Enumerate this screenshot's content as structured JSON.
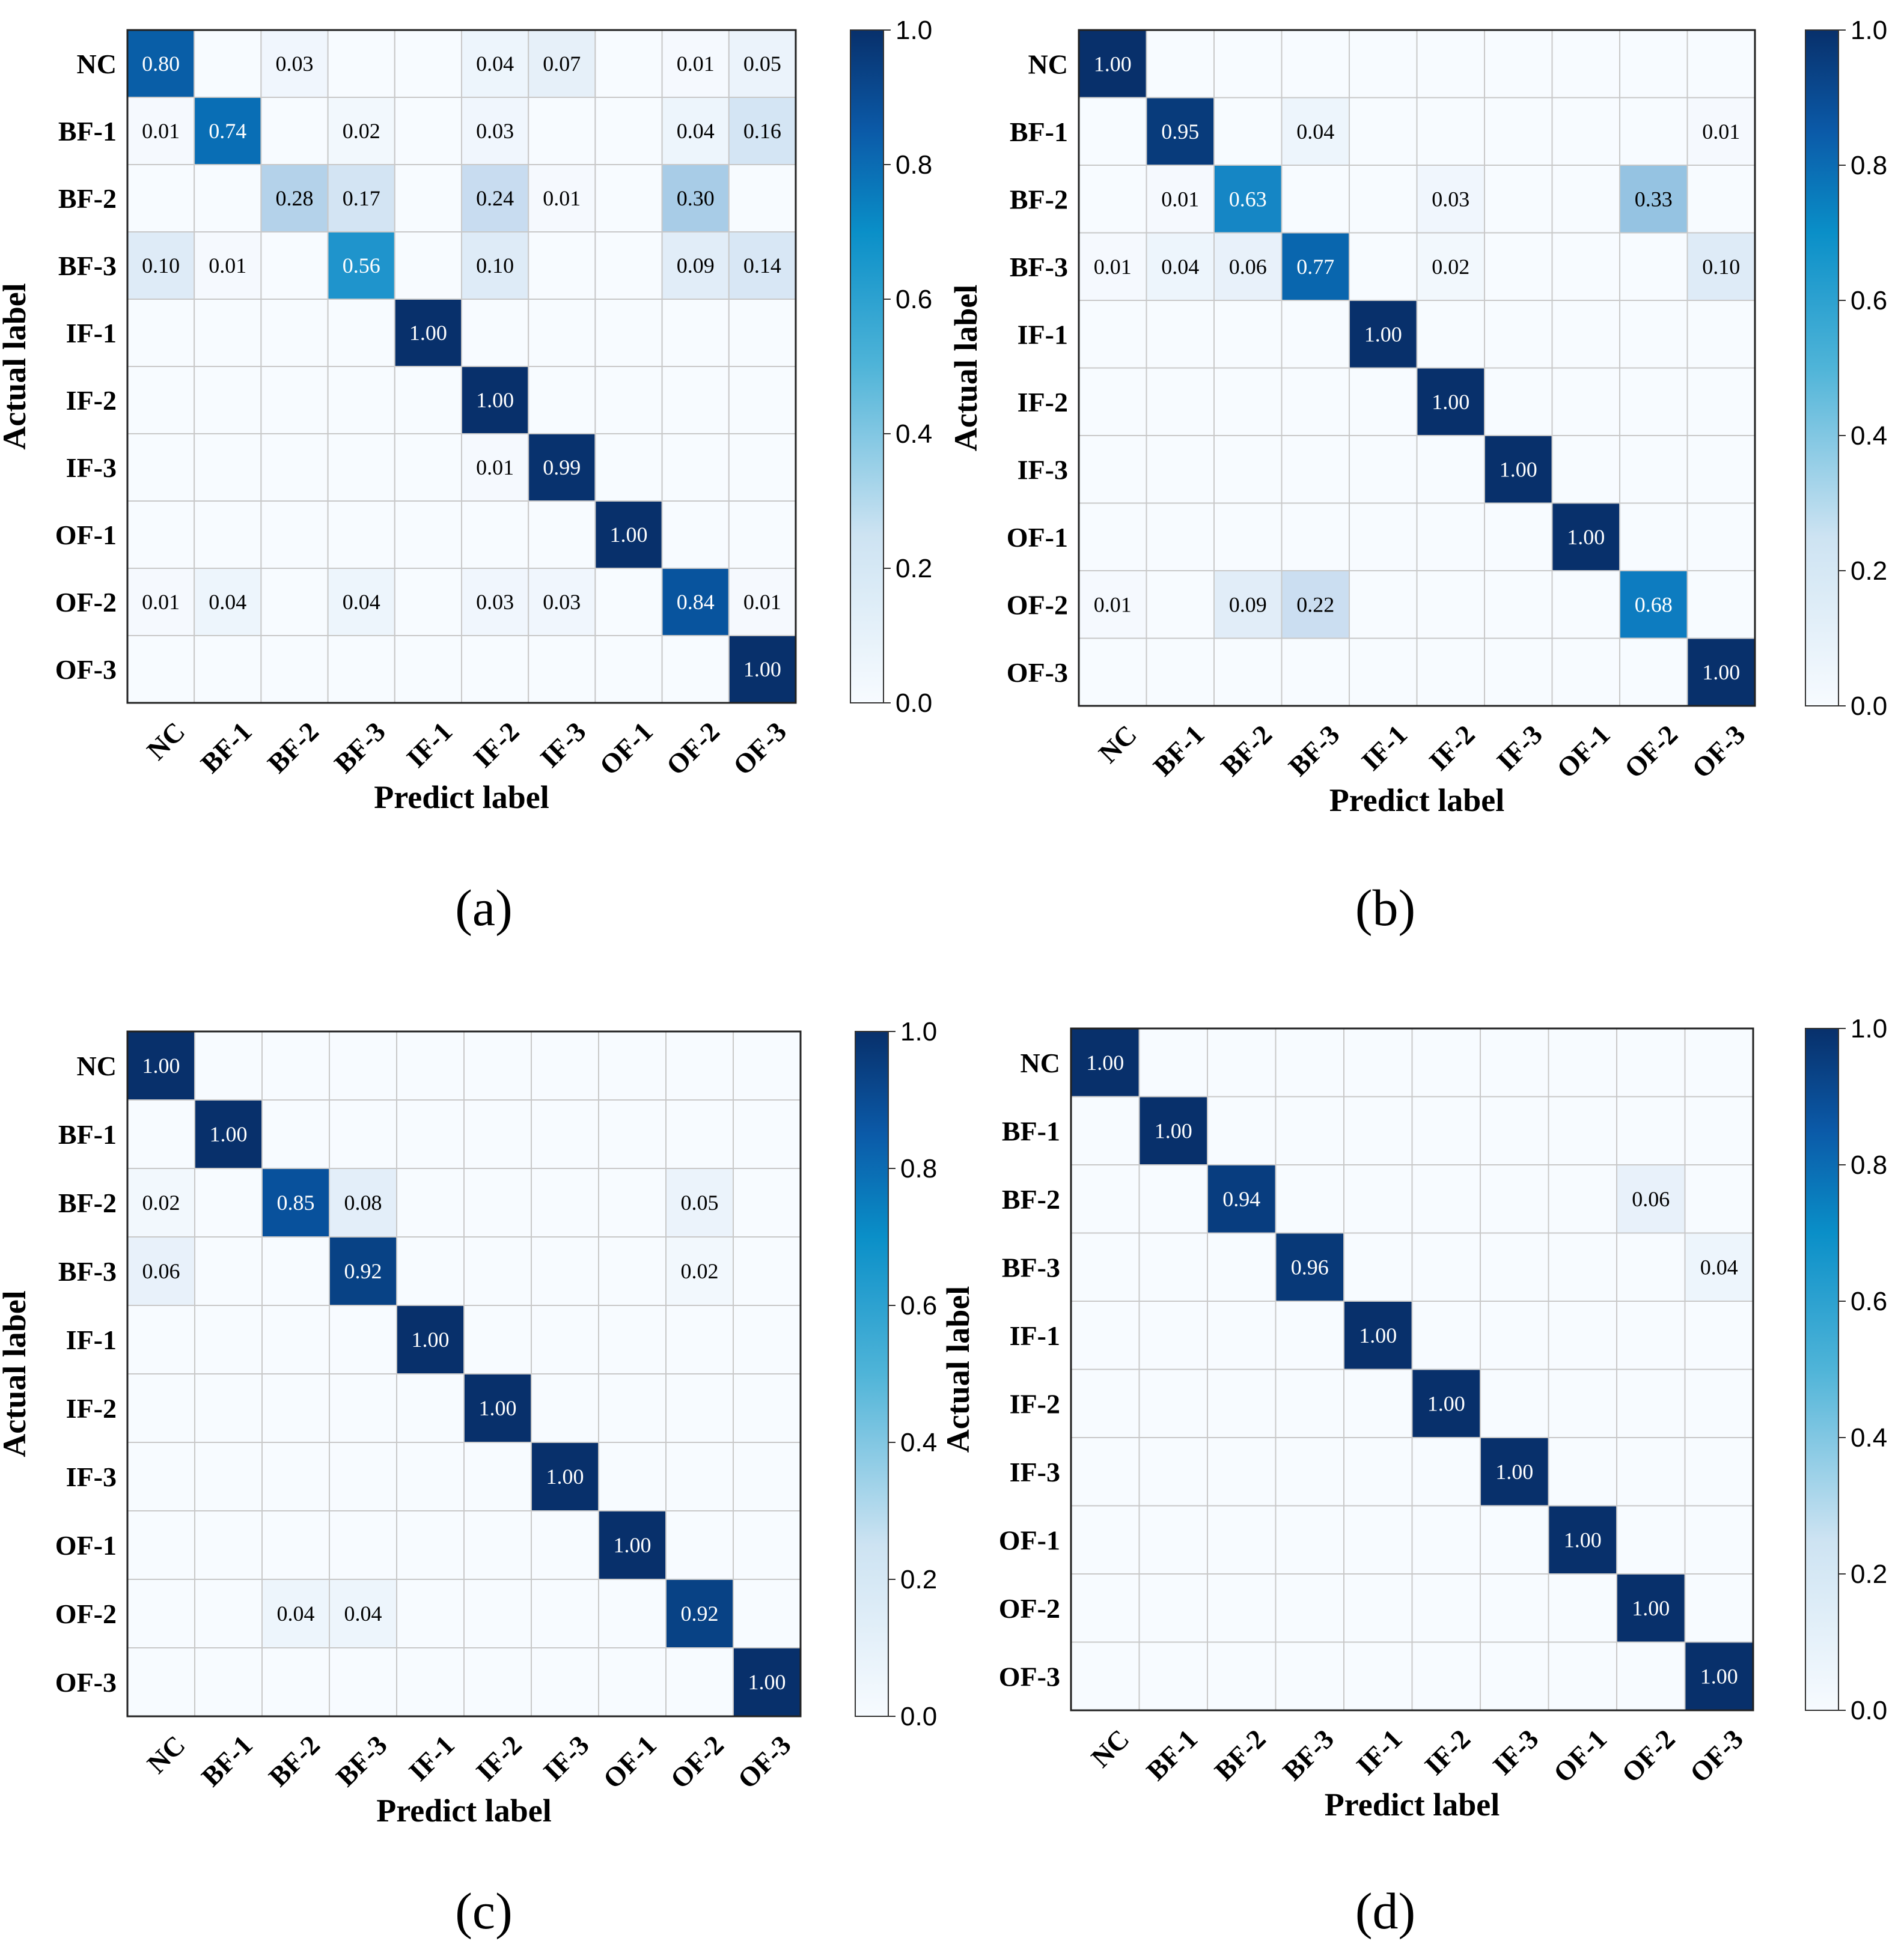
{
  "chart_data": [
    {
      "panel": "(a)",
      "type": "heatmap",
      "xlabel": "Predict label",
      "ylabel": "Actual label",
      "row_labels": [
        "NC",
        "BF-1",
        "BF-2",
        "BF-3",
        "IF-1",
        "IF-2",
        "IF-3",
        "OF-1",
        "OF-2",
        "OF-3"
      ],
      "col_labels": [
        "NC",
        "BF-1",
        "BF-2",
        "BF-3",
        "IF-1",
        "IF-2",
        "IF-3",
        "OF-1",
        "OF-2",
        "OF-3"
      ],
      "colorbar": {
        "range": [
          0,
          1
        ],
        "ticks": [
          "0.0",
          "0.2",
          "0.4",
          "0.6",
          "0.8",
          "1.0"
        ]
      },
      "cell_labels": [
        [
          "0.80",
          "",
          "0.03",
          "",
          "",
          "0.04",
          "0.07",
          "",
          "0.01",
          "0.05"
        ],
        [
          "0.01",
          "0.74",
          "",
          "0.02",
          "",
          "0.03",
          "",
          "",
          "0.04",
          "0.16"
        ],
        [
          "",
          "",
          "0.28",
          "0.17",
          "",
          "0.24",
          "0.01",
          "",
          "0.30",
          ""
        ],
        [
          "0.10",
          "0.01",
          "",
          "0.56",
          "",
          "0.10",
          "",
          "",
          "0.09",
          "0.14"
        ],
        [
          "",
          "",
          "",
          "",
          "1.00",
          "",
          "",
          "",
          "",
          ""
        ],
        [
          "",
          "",
          "",
          "",
          "",
          "1.00",
          "",
          "",
          "",
          ""
        ],
        [
          "",
          "",
          "",
          "",
          "",
          "0.01",
          "0.99",
          "",
          "",
          ""
        ],
        [
          "",
          "",
          "",
          "",
          "",
          "",
          "",
          "1.00",
          "",
          ""
        ],
        [
          "0.01",
          "0.04",
          "",
          "0.04",
          "",
          "0.03",
          "0.03",
          "",
          "0.84",
          "0.01"
        ],
        [
          "",
          "",
          "",
          "",
          "",
          "",
          "",
          "",
          "",
          "1.00"
        ]
      ]
    },
    {
      "panel": "(b)",
      "type": "heatmap",
      "xlabel": "Predict label",
      "ylabel": "Actual label",
      "row_labels": [
        "NC",
        "BF-1",
        "BF-2",
        "BF-3",
        "IF-1",
        "IF-2",
        "IF-3",
        "OF-1",
        "OF-2",
        "OF-3"
      ],
      "col_labels": [
        "NC",
        "BF-1",
        "BF-2",
        "BF-3",
        "IF-1",
        "IF-2",
        "IF-3",
        "OF-1",
        "OF-2",
        "OF-3"
      ],
      "colorbar": {
        "range": [
          0,
          1
        ],
        "ticks": [
          "0.0",
          "0.2",
          "0.4",
          "0.6",
          "0.8",
          "1.0"
        ]
      },
      "cell_labels": [
        [
          "1.00",
          "",
          "",
          "",
          "",
          "",
          "",
          "",
          "",
          ""
        ],
        [
          "",
          "0.95",
          "",
          "0.04",
          "",
          "",
          "",
          "",
          "",
          "0.01"
        ],
        [
          "",
          "0.01",
          "0.63",
          "",
          "",
          "0.03",
          "",
          "",
          "0.33",
          ""
        ],
        [
          "0.01",
          "0.04",
          "0.06",
          "0.77",
          "",
          "0.02",
          "",
          "",
          "",
          "0.10"
        ],
        [
          "",
          "",
          "",
          "",
          "1.00",
          "",
          "",
          "",
          "",
          ""
        ],
        [
          "",
          "",
          "",
          "",
          "",
          "1.00",
          "",
          "",
          "",
          ""
        ],
        [
          "",
          "",
          "",
          "",
          "",
          "",
          "1.00",
          "",
          "",
          ""
        ],
        [
          "",
          "",
          "",
          "",
          "",
          "",
          "",
          "1.00",
          "",
          ""
        ],
        [
          "0.01",
          "",
          "0.09",
          "0.22",
          "",
          "",
          "",
          "",
          "0.68",
          ""
        ],
        [
          "",
          "",
          "",
          "",
          "",
          "",
          "",
          "",
          "",
          "1.00"
        ]
      ]
    },
    {
      "panel": "(c)",
      "type": "heatmap",
      "xlabel": "Predict label",
      "ylabel": "Actual label",
      "row_labels": [
        "NC",
        "BF-1",
        "BF-2",
        "BF-3",
        "IF-1",
        "IF-2",
        "IF-3",
        "OF-1",
        "OF-2",
        "OF-3"
      ],
      "col_labels": [
        "NC",
        "BF-1",
        "BF-2",
        "BF-3",
        "IF-1",
        "IF-2",
        "IF-3",
        "OF-1",
        "OF-2",
        "OF-3"
      ],
      "colorbar": {
        "range": [
          0,
          1
        ],
        "ticks": [
          "0.0",
          "0.2",
          "0.4",
          "0.6",
          "0.8",
          "1.0"
        ]
      },
      "cell_labels": [
        [
          "1.00",
          "",
          "",
          "",
          "",
          "",
          "",
          "",
          "",
          ""
        ],
        [
          "",
          "1.00",
          "",
          "",
          "",
          "",
          "",
          "",
          "",
          ""
        ],
        [
          "0.02",
          "",
          "0.85",
          "0.08",
          "",
          "",
          "",
          "",
          "0.05",
          ""
        ],
        [
          "0.06",
          "",
          "",
          "0.92",
          "",
          "",
          "",
          "",
          "0.02",
          ""
        ],
        [
          "",
          "",
          "",
          "",
          "1.00",
          "",
          "",
          "",
          "",
          ""
        ],
        [
          "",
          "",
          "",
          "",
          "",
          "1.00",
          "",
          "",
          "",
          ""
        ],
        [
          "",
          "",
          "",
          "",
          "",
          "",
          "1.00",
          "",
          "",
          ""
        ],
        [
          "",
          "",
          "",
          "",
          "",
          "",
          "",
          "1.00",
          "",
          ""
        ],
        [
          "",
          "",
          "0.04",
          "0.04",
          "",
          "",
          "",
          "",
          "0.92",
          ""
        ],
        [
          "",
          "",
          "",
          "",
          "",
          "",
          "",
          "",
          "",
          "1.00"
        ]
      ]
    },
    {
      "panel": "(d)",
      "type": "heatmap",
      "xlabel": "Predict label",
      "ylabel": "Actual label",
      "row_labels": [
        "NC",
        "BF-1",
        "BF-2",
        "BF-3",
        "IF-1",
        "IF-2",
        "IF-3",
        "OF-1",
        "OF-2",
        "OF-3"
      ],
      "col_labels": [
        "NC",
        "BF-1",
        "BF-2",
        "BF-3",
        "IF-1",
        "IF-2",
        "IF-3",
        "OF-1",
        "OF-2",
        "OF-3"
      ],
      "colorbar": {
        "range": [
          0,
          1
        ],
        "ticks": [
          "0.0",
          "0.2",
          "0.4",
          "0.6",
          "0.8",
          "1.0"
        ]
      },
      "cell_labels": [
        [
          "1.00",
          "",
          "",
          "",
          "",
          "",
          "",
          "",
          "",
          ""
        ],
        [
          "",
          "1.00",
          "",
          "",
          "",
          "",
          "",
          "",
          "",
          ""
        ],
        [
          "",
          "",
          "0.94",
          "",
          "",
          "",
          "",
          "",
          "0.06",
          ""
        ],
        [
          "",
          "",
          "",
          "0.96",
          "",
          "",
          "",
          "",
          "",
          "0.04"
        ],
        [
          "",
          "",
          "",
          "",
          "1.00",
          "",
          "",
          "",
          "",
          ""
        ],
        [
          "",
          "",
          "",
          "",
          "",
          "1.00",
          "",
          "",
          "",
          ""
        ],
        [
          "",
          "",
          "",
          "",
          "",
          "",
          "1.00",
          "",
          "",
          ""
        ],
        [
          "",
          "",
          "",
          "",
          "",
          "",
          "",
          "1.00",
          "",
          ""
        ],
        [
          "",
          "",
          "",
          "",
          "",
          "",
          "",
          "",
          "1.00",
          ""
        ],
        [
          "",
          "",
          "",
          "",
          "",
          "",
          "",
          "",
          "",
          "1.00"
        ]
      ]
    }
  ]
}
